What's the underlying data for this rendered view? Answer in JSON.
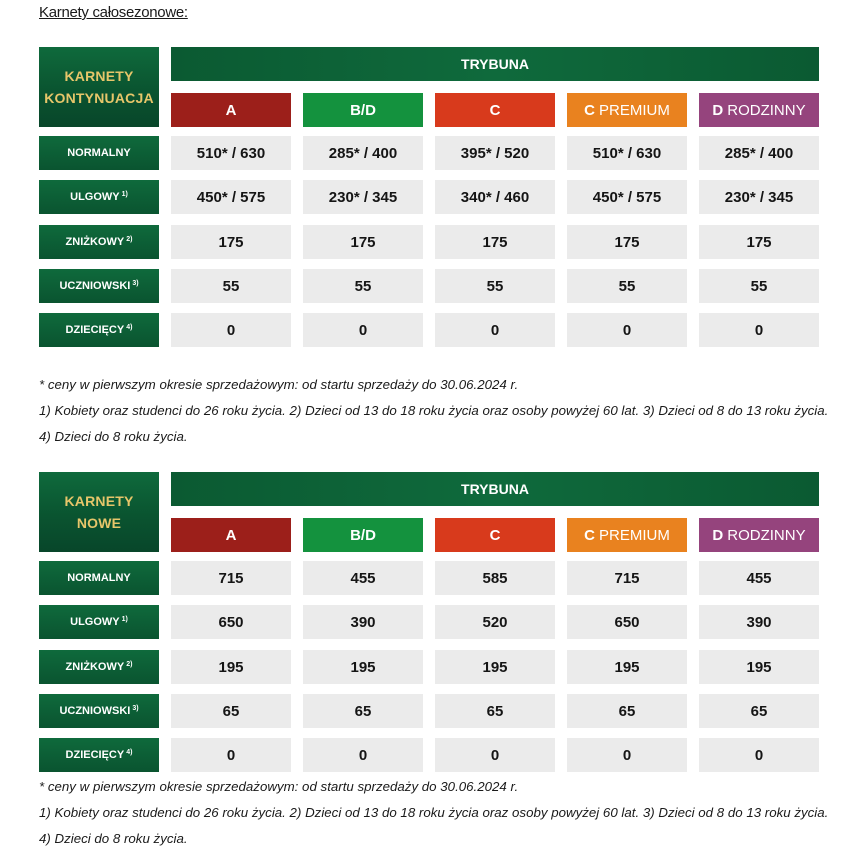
{
  "page": {
    "heading": "Karnety całosezonowe:"
  },
  "colors": {
    "green": "#0a5430",
    "gold": "#e7c66a",
    "A": "#9c1f1a",
    "BD": "#14923e",
    "C": "#d83a1c",
    "CPREMIUM": "#e9821f",
    "DRODZINNY": "#95447d"
  },
  "columns": [
    {
      "main": "A",
      "sub": ""
    },
    {
      "main": "B/D",
      "sub": ""
    },
    {
      "main": "C",
      "sub": ""
    },
    {
      "main": "C",
      "sub": "PREMIUM"
    },
    {
      "main": "D",
      "sub": "RODZINNY"
    }
  ],
  "row_labels": [
    {
      "label": "NORMALNY",
      "sup": ""
    },
    {
      "label": "ULGOWY",
      "sup": "1)"
    },
    {
      "label": "ZNIŻKOWY",
      "sup": "2)"
    },
    {
      "label": "UCZNIOWSKI",
      "sup": "3)"
    },
    {
      "label": "DZIECIĘCY",
      "sup": "4)"
    }
  ],
  "tables": [
    {
      "corner": [
        "KARNETY",
        "KONTYNUACJA"
      ],
      "stand": "TRYBUNA",
      "rows": [
        [
          "510* / 630",
          "285* / 400",
          "395* / 520",
          "510* / 630",
          "285* / 400"
        ],
        [
          "450* / 575",
          "230* / 345",
          "340* / 460",
          "450* / 575",
          "230* / 345"
        ],
        [
          "175",
          "175",
          "175",
          "175",
          "175"
        ],
        [
          "55",
          "55",
          "55",
          "55",
          "55"
        ],
        [
          "0",
          "0",
          "0",
          "0",
          "0"
        ]
      ],
      "footnote_star": "* ceny w pierwszym okresie sprzedażowym: od startu sprzedaży do 30.06.2024 r.",
      "footnote_legend": "1) Kobiety oraz studenci do 26 roku życia. 2) Dzieci od 13 do 18 roku życia oraz osoby powyżej 60 lat. 3) Dzieci od 8 do 13 roku życia. 4) Dzieci do 8 roku życia."
    },
    {
      "corner": [
        "KARNETY",
        "NOWE"
      ],
      "stand": "TRYBUNA",
      "rows": [
        [
          "715",
          "455",
          "585",
          "715",
          "455"
        ],
        [
          "650",
          "390",
          "520",
          "650",
          "390"
        ],
        [
          "195",
          "195",
          "195",
          "195",
          "195"
        ],
        [
          "65",
          "65",
          "65",
          "65",
          "65"
        ],
        [
          "0",
          "0",
          "0",
          "0",
          "0"
        ]
      ],
      "footnote_star": "* ceny w pierwszym okresie sprzedażowym: od startu sprzedaży do 30.06.2024 r.",
      "footnote_legend": "1) Kobiety oraz studenci do 26 roku życia. 2) Dzieci od 13 do 18 roku życia oraz osoby powyżej 60 lat. 3) Dzieci od 8 do 13 roku życia. 4) Dzieci do 8 roku życia."
    }
  ]
}
